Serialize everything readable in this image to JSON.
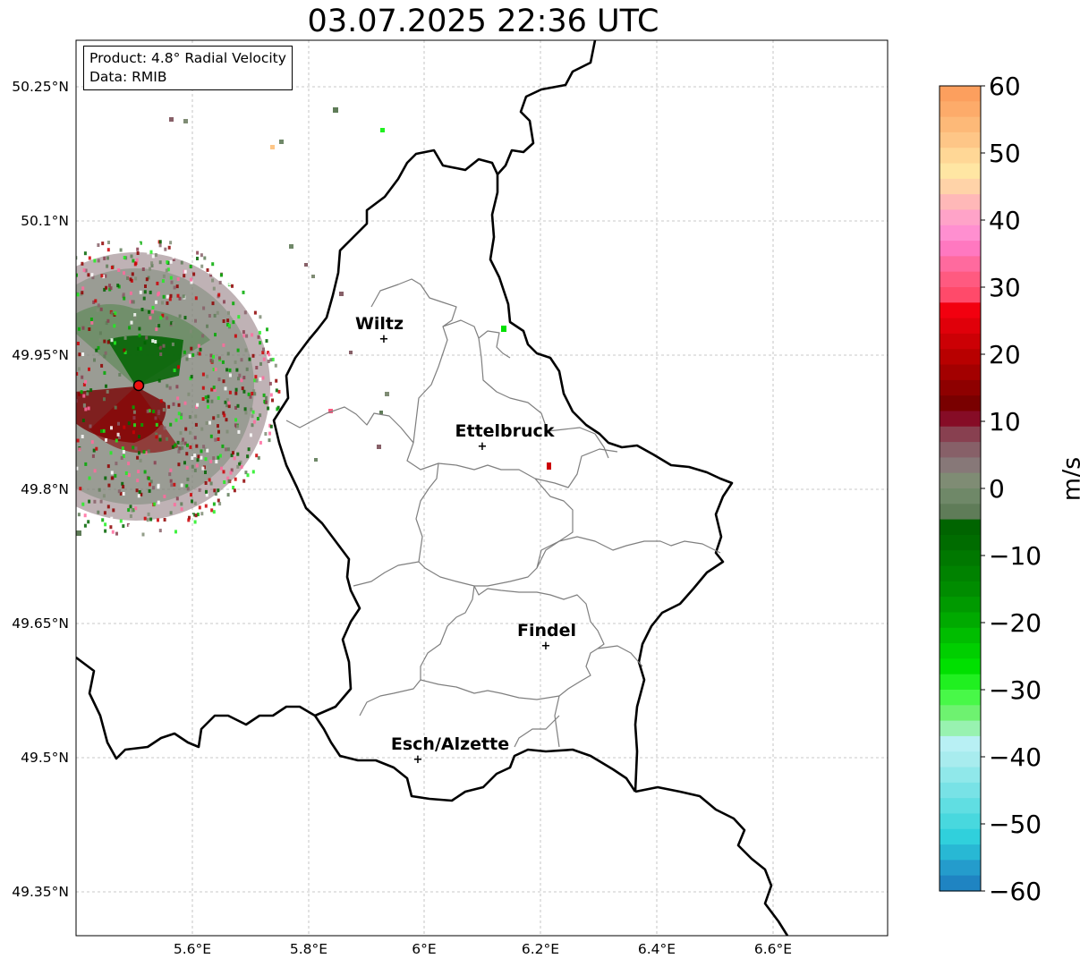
{
  "title": "03.07.2025 22:36 UTC",
  "info": {
    "product": "Product: 4.8° Radial Velocity",
    "data_source": "Data: RMIB"
  },
  "lat_labels": [
    "50.25°N",
    "50.1°N",
    "49.95°N",
    "49.8°N",
    "49.65°N",
    "49.5°N",
    "49.35°N"
  ],
  "lon_labels": [
    "5.6°E",
    "5.8°E",
    "6°E",
    "6.2°E",
    "6.4°E",
    "6.6°E"
  ],
  "cities": [
    {
      "name": "Wiltz"
    },
    {
      "name": "Ettelbruck"
    },
    {
      "name": "Findel"
    },
    {
      "name": "Esch/Alzette"
    }
  ],
  "colorbar": {
    "unit": "m/s",
    "ticks": [
      "60",
      "50",
      "40",
      "30",
      "20",
      "10",
      "0",
      "−10",
      "−20",
      "−30",
      "−40",
      "−50",
      "−60"
    ],
    "colors": [
      "#fc9f5e",
      "#fdab6a",
      "#fdb978",
      "#fec687",
      "#ffd796",
      "#ffe6a3",
      "#ffd3a8",
      "#ffb8b8",
      "#ffa3c8",
      "#ff8fd0",
      "#ff78c0",
      "#ff6a9e",
      "#ff5a80",
      "#ff4a6a",
      "#f2000f",
      "#e0000a",
      "#cc0005",
      "#b80000",
      "#a30000",
      "#8e0000",
      "#790000",
      "#860c26",
      "#884050",
      "#876068",
      "#877878",
      "#7f8c74",
      "#6f8868",
      "#5f7c58",
      "#006400",
      "#006c00",
      "#007800",
      "#008200",
      "#008c00",
      "#009a00",
      "#00aa00",
      "#00bd00",
      "#00cf00",
      "#00e000",
      "#20f020",
      "#48f848",
      "#6ef270",
      "#98f2b0",
      "#b8f0f4",
      "#a8ecee",
      "#90e8ea",
      "#78e2e6",
      "#60dee2",
      "#48d8de",
      "#30d0dc",
      "#28b8d4",
      "#249ccc",
      "#1f84c2"
    ]
  },
  "radar_site_color": "#ee1111"
}
